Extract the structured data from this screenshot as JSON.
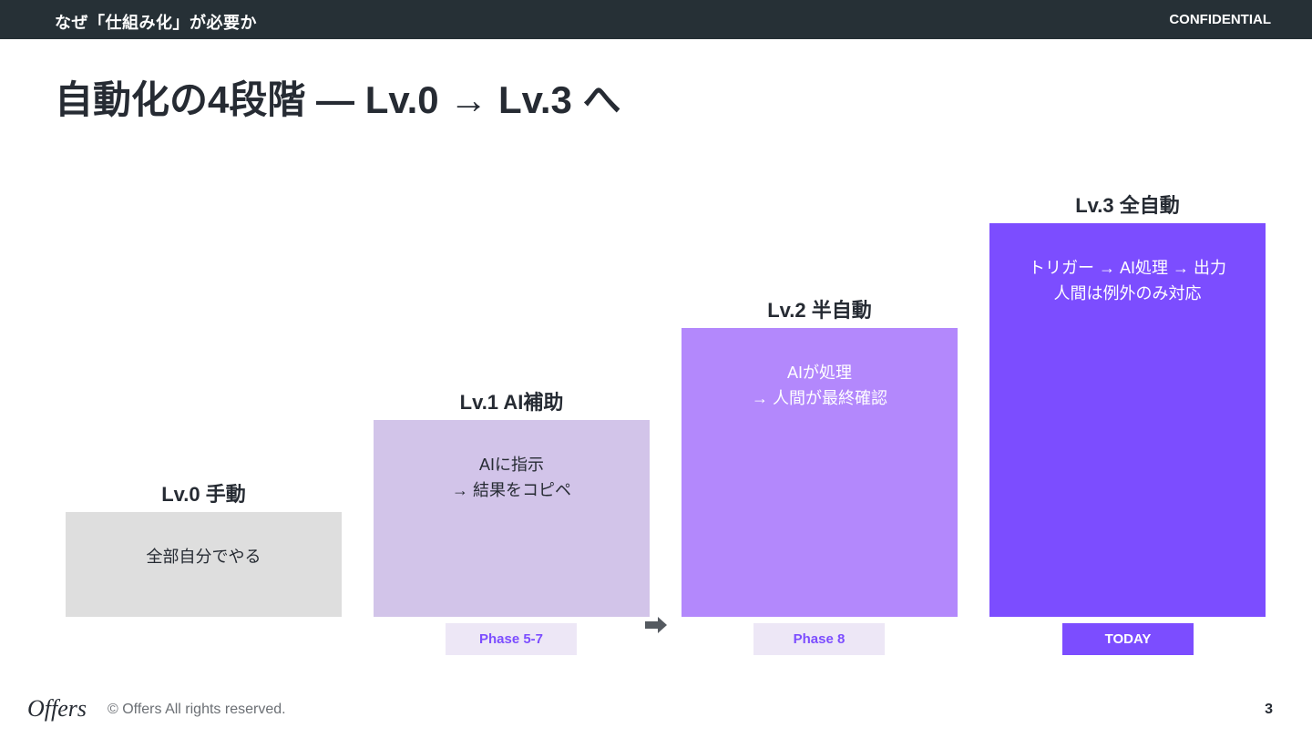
{
  "header": {
    "section": "なぜ「仕組み化」が必要か",
    "confidential": "CONFIDENTIAL"
  },
  "slide": {
    "title": "自動化の4段階 — Lv.0 → Lv.3 へ"
  },
  "levels": [
    {
      "label": "Lv.0 手動",
      "lines": [
        "全部自分でやる"
      ],
      "color": "#dedede",
      "text_color": "#262b33",
      "level": 0
    },
    {
      "label": "Lv.1 AI補助",
      "lines": [
        "AIに指示",
        "→ 結果をコピペ"
      ],
      "color": "#d2c4e9",
      "text_color": "#262b33",
      "level": 1
    },
    {
      "label": "Lv.2 半自動",
      "lines": [
        "AIが処理",
        "→ 人間が最終確認"
      ],
      "color": "#b388fc",
      "text_color": "#ffffff",
      "level": 2
    },
    {
      "label": "Lv.3 全自動",
      "lines": [
        "トリガー → AI処理 → 出力",
        "人間は例外のみ対応"
      ],
      "color": "#7c4dff",
      "text_color": "#ffffff",
      "level": 3
    }
  ],
  "badges": [
    {
      "text": "Phase 5-7",
      "bg": "#ede7f6",
      "color": "#7c4dff"
    },
    {
      "text": "Phase 8",
      "bg": "#ede7f6",
      "color": "#7c4dff"
    },
    {
      "text": "TODAY",
      "bg": "#7c4dff",
      "color": "#ffffff"
    }
  ],
  "footer": {
    "logo": "Offers",
    "copyright": "© Offers All rights reserved.",
    "page": "3"
  },
  "icons": {
    "arrow": "right-arrow-icon"
  }
}
